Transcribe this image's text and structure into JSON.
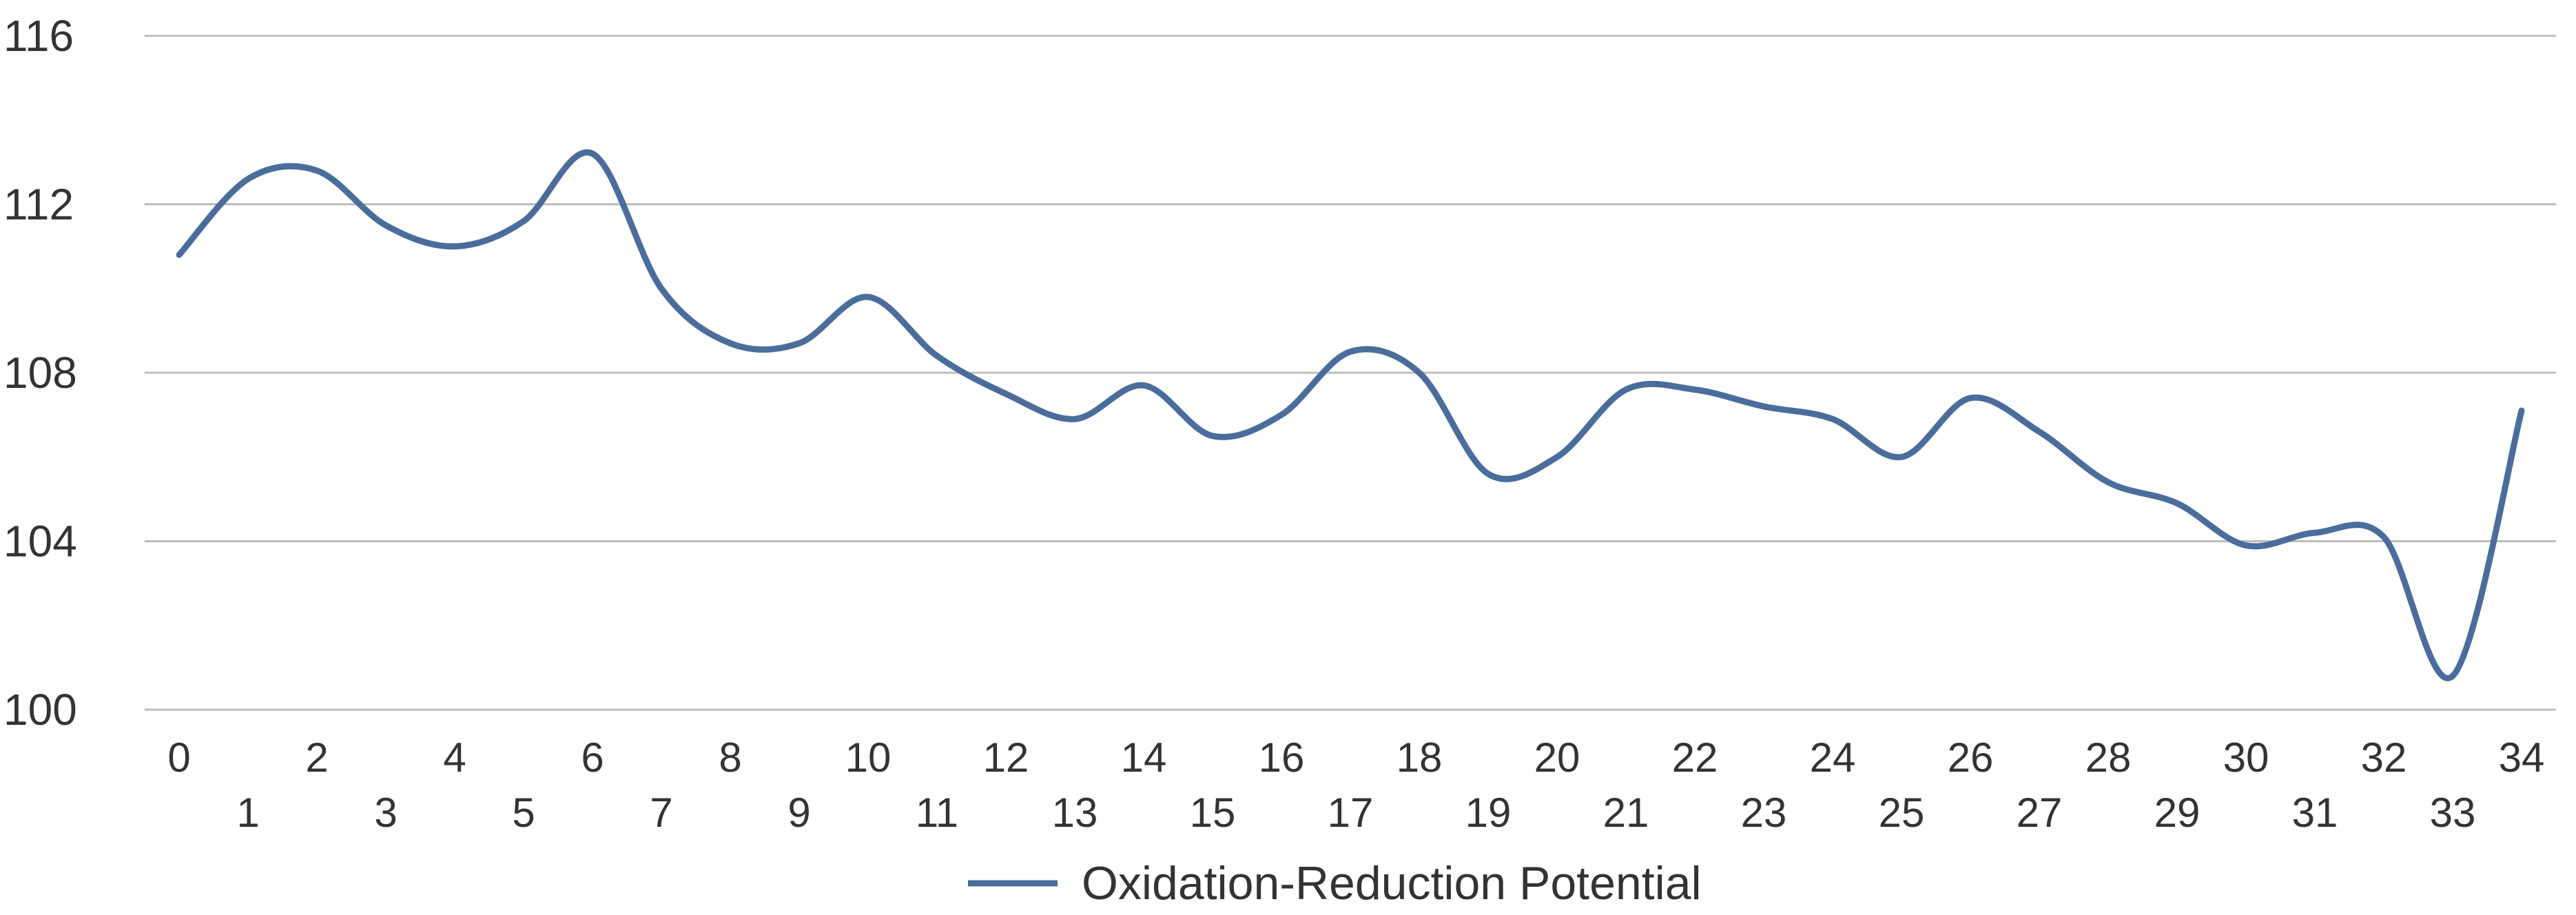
{
  "chart_data": {
    "type": "line",
    "title": "",
    "xlabel": "",
    "ylabel": "",
    "ylim": [
      100,
      116
    ],
    "yticks": [
      "100",
      "104",
      "108",
      "112",
      "116"
    ],
    "x": [
      "0",
      "1",
      "2",
      "3",
      "4",
      "5",
      "6",
      "7",
      "8",
      "9",
      "10",
      "11",
      "12",
      "13",
      "14",
      "15",
      "16",
      "17",
      "18",
      "19",
      "20",
      "21",
      "22",
      "23",
      "24",
      "25",
      "26",
      "27",
      "28",
      "29",
      "30",
      "31",
      "32",
      "33",
      "34"
    ],
    "grid": "horizontal",
    "legend_position": "bottom",
    "series": [
      {
        "name": "Oxidation-Reduction Potential",
        "color": "#4a6d9c",
        "values": [
          110.8,
          112.6,
          112.8,
          111.5,
          111.0,
          111.6,
          113.2,
          110.0,
          108.7,
          108.7,
          109.8,
          108.4,
          107.5,
          106.9,
          107.7,
          106.5,
          107.0,
          108.5,
          108.0,
          105.6,
          106.0,
          107.6,
          107.6,
          107.2,
          106.9,
          106.0,
          107.4,
          106.6,
          105.4,
          104.9,
          103.9,
          104.2,
          104.1,
          100.8,
          107.1
        ]
      }
    ]
  }
}
